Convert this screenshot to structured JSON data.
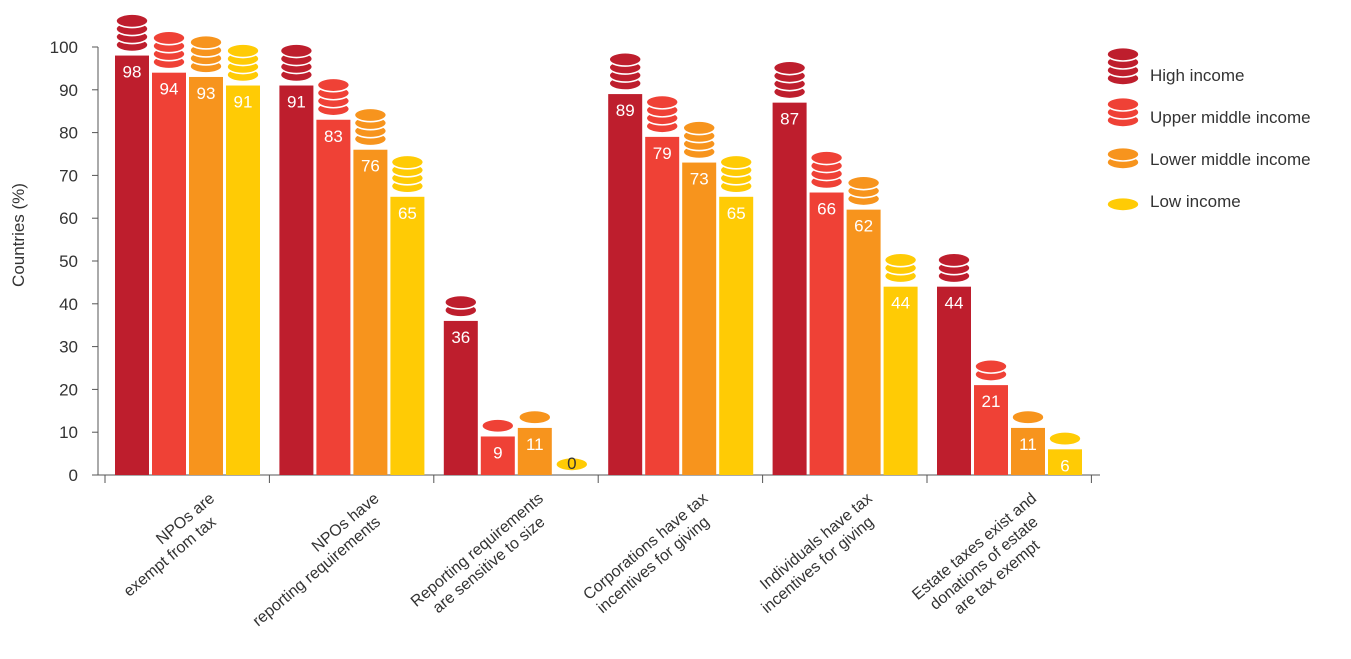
{
  "chart_data": {
    "type": "bar",
    "ylabel": "Countries (%)",
    "ylim": [
      0,
      100
    ],
    "yticks": [
      0,
      10,
      20,
      30,
      40,
      50,
      60,
      70,
      80,
      90,
      100
    ],
    "grid": false,
    "legend_position": "top-right",
    "categories": [
      [
        "NPOs are",
        "exempt from tax"
      ],
      [
        "NPOs have",
        "reporting requirements"
      ],
      [
        "Reporting requirements",
        "are sensitive to size"
      ],
      [
        "Corporations have tax",
        "incentives for giving"
      ],
      [
        "Individuals have tax",
        "incentives for giving"
      ],
      [
        "Estate taxes exist and",
        "donations of estate",
        "are tax exempt"
      ]
    ],
    "series": [
      {
        "name": "High income",
        "color": "#BE1E2D",
        "values": [
          98,
          91,
          36,
          89,
          87,
          44
        ]
      },
      {
        "name": "Upper middle income",
        "color": "#EF4136",
        "values": [
          94,
          83,
          9,
          79,
          66,
          21
        ]
      },
      {
        "name": "Lower middle income",
        "color": "#F7941D",
        "values": [
          93,
          76,
          11,
          73,
          62,
          11
        ]
      },
      {
        "name": "Low income",
        "color": "#FFCB05",
        "values": [
          91,
          65,
          0,
          65,
          44,
          6
        ]
      }
    ],
    "icon": "coin-stack-icon"
  }
}
